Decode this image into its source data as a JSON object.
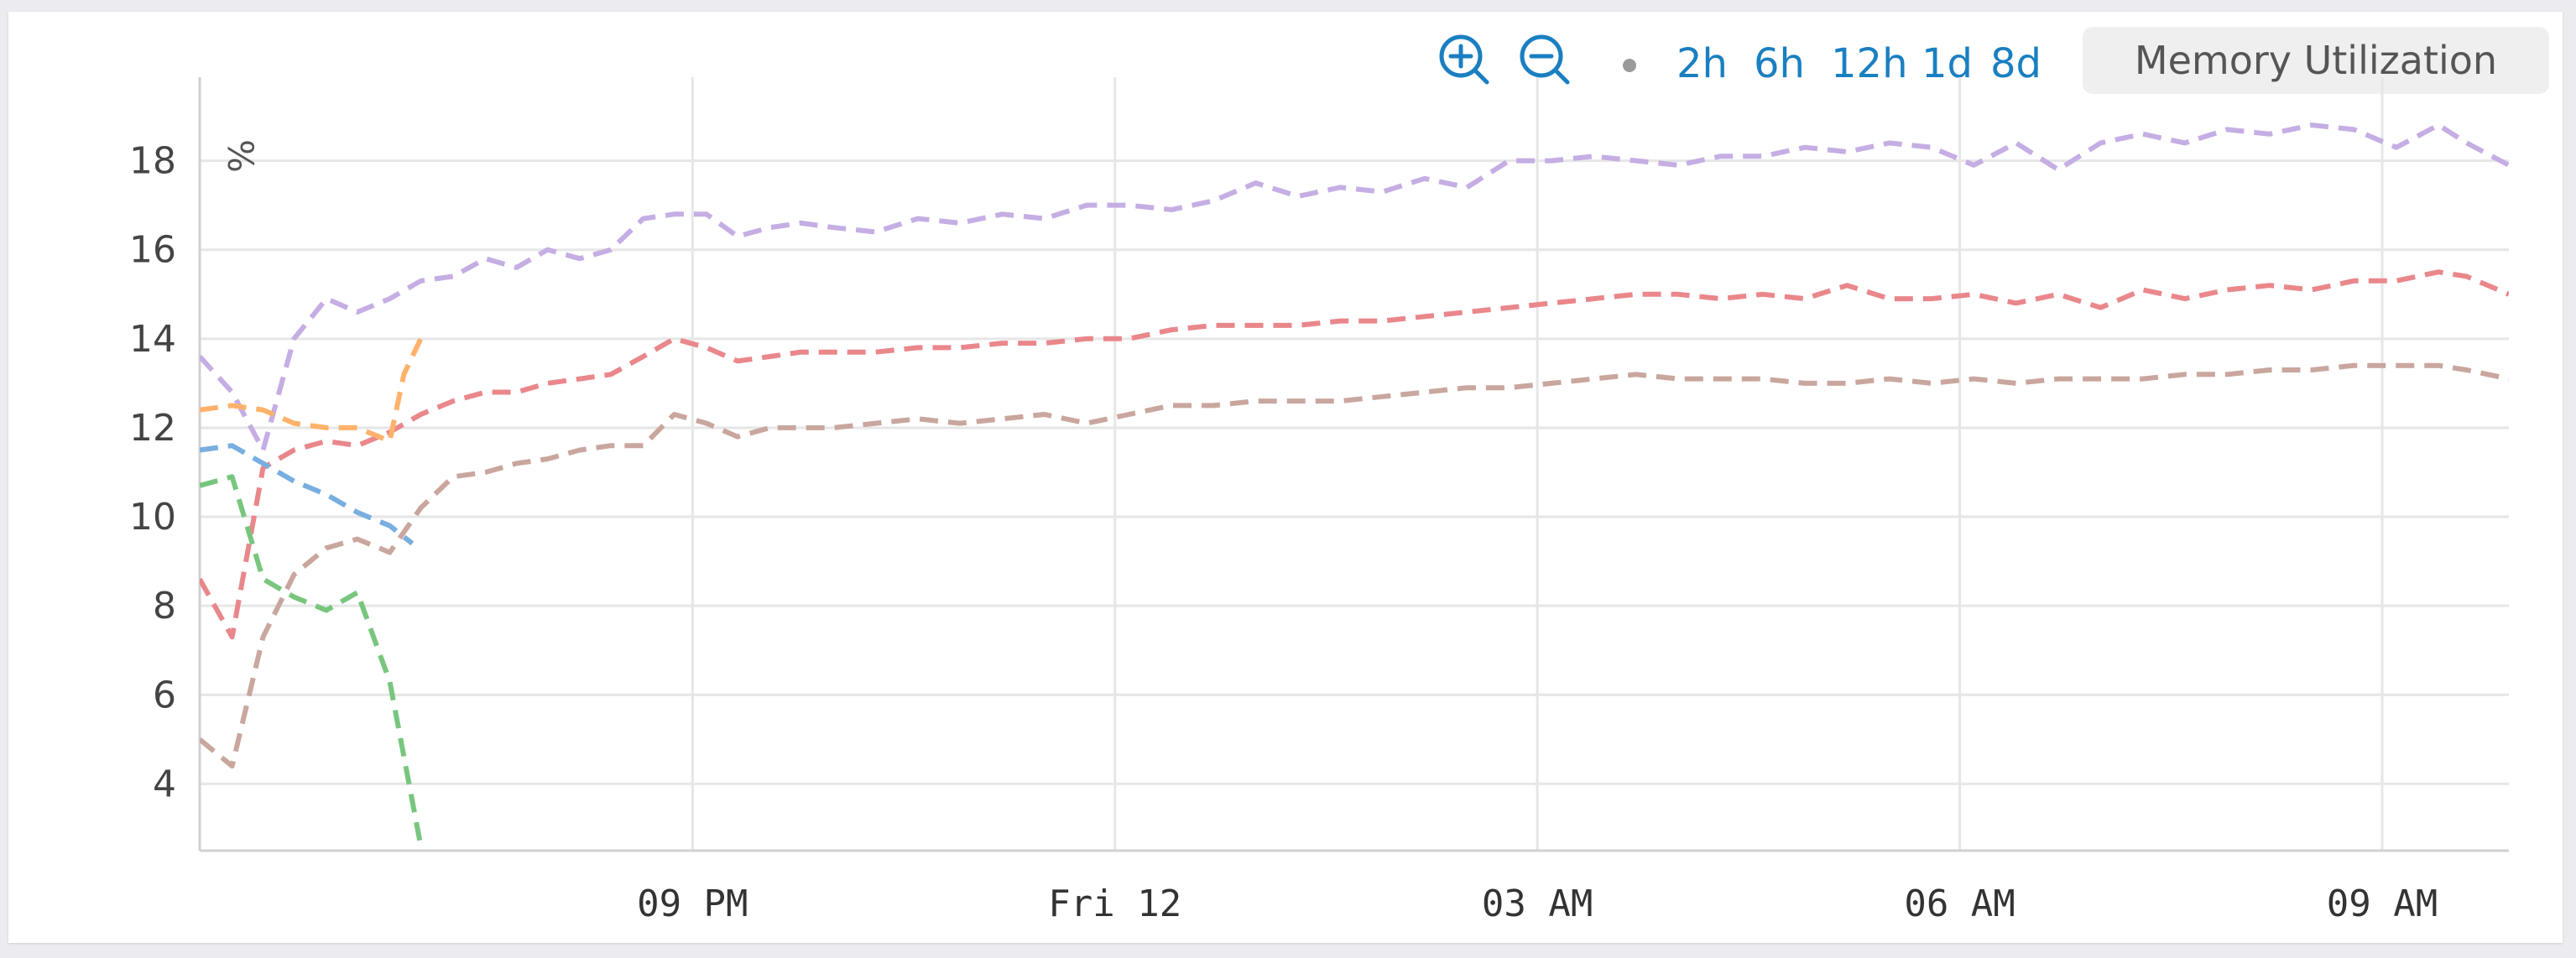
{
  "toolbar": {
    "zoom_in_icon": "zoom-in-icon",
    "zoom_out_icon": "zoom-out-icon",
    "link_color": "#1a7fc1",
    "ranges": [
      "2h",
      "6h",
      "12h",
      "1d",
      "8d"
    ],
    "metric": "Memory Utilization"
  },
  "chart_data": {
    "type": "line",
    "ylabel": "%",
    "ylim": [
      2.5,
      19.5
    ],
    "y_ticks": [
      4,
      6,
      8,
      10,
      12,
      14,
      16,
      18
    ],
    "x_range_hours": [
      -3.5,
      12.9
    ],
    "x_ticks": [
      {
        "label": "09 PM",
        "hour": 0
      },
      {
        "label": "Fri 12",
        "hour": 3
      },
      {
        "label": "03 AM",
        "hour": 6
      },
      {
        "label": "06 AM",
        "hour": 9
      },
      {
        "label": "09 AM",
        "hour": 12
      }
    ],
    "grid": true,
    "series": [
      {
        "color": "#c5aee3",
        "dash": "dashed",
        "x": [
          -3.5,
          -3.27,
          -3.05,
          -2.83,
          -2.6,
          -2.38,
          -2.15,
          -1.93,
          -1.7,
          -1.47,
          -1.25,
          -1.03,
          -0.8,
          -0.58,
          -0.35,
          -0.13,
          0.1,
          0.32,
          0.55,
          0.77,
          1.0,
          1.3,
          1.6,
          1.9,
          2.2,
          2.5,
          2.8,
          3.1,
          3.4,
          3.7,
          4.0,
          4.3,
          4.6,
          4.9,
          5.2,
          5.5,
          5.8,
          6.1,
          6.4,
          6.7,
          7.0,
          7.3,
          7.6,
          7.9,
          8.2,
          8.5,
          8.8,
          9.1,
          9.4,
          9.7,
          10.0,
          10.3,
          10.6,
          10.9,
          11.2,
          11.5,
          11.8,
          12.1,
          12.4,
          12.6,
          12.9
        ],
        "y": [
          13.6,
          12.8,
          11.5,
          14.0,
          14.9,
          14.6,
          14.9,
          15.3,
          15.4,
          15.8,
          15.6,
          16.0,
          15.8,
          16.0,
          16.7,
          16.8,
          16.8,
          16.3,
          16.5,
          16.6,
          16.5,
          16.4,
          16.7,
          16.6,
          16.8,
          16.7,
          17.0,
          17.0,
          16.9,
          17.1,
          17.5,
          17.2,
          17.4,
          17.3,
          17.6,
          17.4,
          18.0,
          18.0,
          18.1,
          18.0,
          17.9,
          18.1,
          18.1,
          18.3,
          18.2,
          18.4,
          18.3,
          17.9,
          18.4,
          17.8,
          18.4,
          18.6,
          18.4,
          18.7,
          18.6,
          18.8,
          18.7,
          18.3,
          18.8,
          18.4,
          17.9
        ]
      },
      {
        "color": "#e9878b",
        "dash": "dashed",
        "x": [
          -3.5,
          -3.27,
          -3.05,
          -2.83,
          -2.6,
          -2.38,
          -2.15,
          -1.93,
          -1.7,
          -1.47,
          -1.25,
          -1.03,
          -0.8,
          -0.58,
          -0.35,
          -0.13,
          0.1,
          0.32,
          0.55,
          0.77,
          1.0,
          1.3,
          1.6,
          1.9,
          2.2,
          2.5,
          2.8,
          3.1,
          3.4,
          3.7,
          4.0,
          4.3,
          4.6,
          4.9,
          5.2,
          5.5,
          5.8,
          6.1,
          6.4,
          6.7,
          7.0,
          7.3,
          7.6,
          7.9,
          8.2,
          8.5,
          8.8,
          9.1,
          9.4,
          9.7,
          10.0,
          10.3,
          10.6,
          10.9,
          11.2,
          11.5,
          11.8,
          12.1,
          12.4,
          12.6,
          12.9
        ],
        "y": [
          8.6,
          7.3,
          11.1,
          11.5,
          11.7,
          11.6,
          11.9,
          12.3,
          12.6,
          12.8,
          12.8,
          13.0,
          13.1,
          13.2,
          13.6,
          14.0,
          13.8,
          13.5,
          13.6,
          13.7,
          13.7,
          13.7,
          13.8,
          13.8,
          13.9,
          13.9,
          14.0,
          14.0,
          14.2,
          14.3,
          14.3,
          14.3,
          14.4,
          14.4,
          14.5,
          14.6,
          14.7,
          14.8,
          14.9,
          15.0,
          15.0,
          14.9,
          15.0,
          14.9,
          15.2,
          14.9,
          14.9,
          15.0,
          14.8,
          15.0,
          14.7,
          15.1,
          14.9,
          15.1,
          15.2,
          15.1,
          15.3,
          15.3,
          15.5,
          15.4,
          15.0
        ]
      },
      {
        "color": "#c9a69e",
        "dash": "dashed",
        "x": [
          -3.5,
          -3.27,
          -3.05,
          -2.83,
          -2.6,
          -2.38,
          -2.15,
          -1.93,
          -1.7,
          -1.47,
          -1.25,
          -1.03,
          -0.8,
          -0.58,
          -0.35,
          -0.13,
          0.1,
          0.32,
          0.55,
          0.77,
          1.0,
          1.3,
          1.6,
          1.9,
          2.2,
          2.5,
          2.8,
          3.1,
          3.4,
          3.7,
          4.0,
          4.3,
          4.6,
          4.9,
          5.2,
          5.5,
          5.8,
          6.1,
          6.4,
          6.7,
          7.0,
          7.3,
          7.6,
          7.9,
          8.2,
          8.5,
          8.8,
          9.1,
          9.4,
          9.7,
          10.0,
          10.3,
          10.6,
          10.9,
          11.2,
          11.5,
          11.8,
          12.1,
          12.4,
          12.6,
          12.9
        ],
        "y": [
          5.0,
          4.4,
          7.3,
          8.7,
          9.3,
          9.5,
          9.2,
          10.2,
          10.9,
          11.0,
          11.2,
          11.3,
          11.5,
          11.6,
          11.6,
          12.3,
          12.1,
          11.8,
          12.0,
          12.0,
          12.0,
          12.1,
          12.2,
          12.1,
          12.2,
          12.3,
          12.1,
          12.3,
          12.5,
          12.5,
          12.6,
          12.6,
          12.6,
          12.7,
          12.8,
          12.9,
          12.9,
          13.0,
          13.1,
          13.2,
          13.1,
          13.1,
          13.1,
          13.0,
          13.0,
          13.1,
          13.0,
          13.1,
          13.0,
          13.1,
          13.1,
          13.1,
          13.2,
          13.2,
          13.3,
          13.3,
          13.4,
          13.4,
          13.4,
          13.3,
          13.1
        ]
      },
      {
        "color": "#ffb26b",
        "dash": "dashed",
        "x": [
          -3.5,
          -3.27,
          -3.05,
          -2.83,
          -2.6,
          -2.38,
          -2.15,
          -2.05,
          -1.93
        ],
        "y": [
          12.4,
          12.5,
          12.4,
          12.1,
          12.0,
          12.0,
          11.7,
          13.2,
          14.0
        ]
      },
      {
        "color": "#78aee0",
        "dash": "dashed",
        "x": [
          -3.5,
          -3.27,
          -3.05,
          -2.83,
          -2.6,
          -2.38,
          -2.15,
          -1.99
        ],
        "y": [
          11.5,
          11.6,
          11.2,
          10.8,
          10.5,
          10.1,
          9.8,
          9.4
        ]
      },
      {
        "color": "#78c67d",
        "dash": "dashed",
        "x": [
          -3.5,
          -3.27,
          -3.05,
          -2.83,
          -2.6,
          -2.38,
          -2.15,
          -1.93
        ],
        "y": [
          10.7,
          10.9,
          8.6,
          8.2,
          7.9,
          8.3,
          6.3,
          2.6
        ]
      }
    ]
  }
}
